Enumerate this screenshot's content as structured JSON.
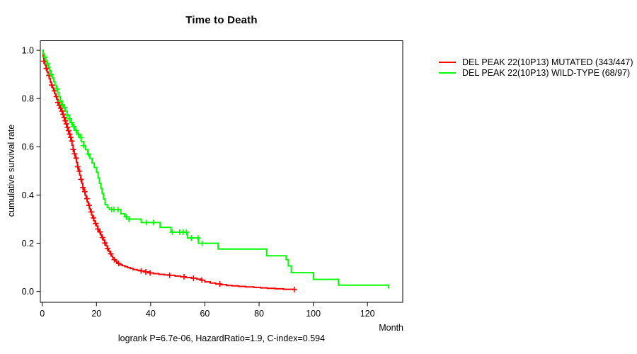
{
  "chart_data": {
    "type": "line",
    "subtype": "kaplan-meier-step-curves",
    "title": "Time to Death",
    "xlabel": "Month",
    "ylabel": "cumulative survival rate",
    "footer": "logrank P=6.7e-06, HazardRatio=1.9, C-index=0.594",
    "x_ticks": [
      0,
      20,
      40,
      60,
      80,
      100,
      120
    ],
    "y_ticks": [
      0.0,
      0.2,
      0.4,
      0.6,
      0.8,
      1.0
    ],
    "xlim": [
      -0.7,
      133
    ],
    "ylim": [
      -0.045,
      1.04
    ],
    "grid": false,
    "legend_position": "right-outside",
    "frame_color": "#000000",
    "series": [
      {
        "name": "DEL PEAK 22(10P13) MUTATED (343/447)",
        "color": "#ff0000",
        "points": [
          [
            0,
            1.0
          ],
          [
            0.3,
            0.975
          ],
          [
            0.6,
            0.955
          ],
          [
            1.0,
            0.94
          ],
          [
            1.4,
            0.925
          ],
          [
            1.8,
            0.91
          ],
          [
            2.2,
            0.896
          ],
          [
            2.6,
            0.882
          ],
          [
            3.0,
            0.868
          ],
          [
            3.4,
            0.856
          ],
          [
            3.8,
            0.844
          ],
          [
            4.2,
            0.832
          ],
          [
            4.6,
            0.82
          ],
          [
            5.0,
            0.808
          ],
          [
            5.4,
            0.796
          ],
          [
            5.8,
            0.784
          ],
          [
            6.2,
            0.772
          ],
          [
            6.6,
            0.76
          ],
          [
            7.0,
            0.748
          ],
          [
            7.4,
            0.735
          ],
          [
            7.8,
            0.722
          ],
          [
            8.2,
            0.708
          ],
          [
            8.6,
            0.695
          ],
          [
            9.0,
            0.681
          ],
          [
            9.4,
            0.667
          ],
          [
            9.8,
            0.653
          ],
          [
            10.2,
            0.639
          ],
          [
            10.6,
            0.624
          ],
          [
            11.0,
            0.607
          ],
          [
            11.4,
            0.589
          ],
          [
            11.8,
            0.571
          ],
          [
            12.2,
            0.553
          ],
          [
            12.6,
            0.535
          ],
          [
            13.0,
            0.517
          ],
          [
            13.4,
            0.499
          ],
          [
            13.8,
            0.482
          ],
          [
            14.2,
            0.465
          ],
          [
            14.6,
            0.448
          ],
          [
            15.0,
            0.431
          ],
          [
            15.4,
            0.414
          ],
          [
            15.8,
            0.399
          ],
          [
            16.2,
            0.385
          ],
          [
            16.6,
            0.371
          ],
          [
            17.0,
            0.357
          ],
          [
            17.4,
            0.343
          ],
          [
            17.8,
            0.33
          ],
          [
            18.2,
            0.317
          ],
          [
            18.6,
            0.305
          ],
          [
            19.0,
            0.293
          ],
          [
            19.5,
            0.282
          ],
          [
            20.0,
            0.271
          ],
          [
            20.5,
            0.259
          ],
          [
            21.0,
            0.247
          ],
          [
            21.5,
            0.235
          ],
          [
            22.0,
            0.224
          ],
          [
            22.5,
            0.213
          ],
          [
            23.0,
            0.201
          ],
          [
            23.5,
            0.189
          ],
          [
            24.0,
            0.178
          ],
          [
            24.5,
            0.167
          ],
          [
            25.0,
            0.156
          ],
          [
            25.5,
            0.147
          ],
          [
            26.0,
            0.139
          ],
          [
            26.5,
            0.132
          ],
          [
            27.0,
            0.126
          ],
          [
            27.5,
            0.121
          ],
          [
            28.0,
            0.116
          ],
          [
            28.7,
            0.111
          ],
          [
            29.5,
            0.107
          ],
          [
            30.5,
            0.103
          ],
          [
            31.5,
            0.099
          ],
          [
            32.5,
            0.095
          ],
          [
            33.5,
            0.091
          ],
          [
            35.0,
            0.088
          ],
          [
            36.5,
            0.085
          ],
          [
            38.0,
            0.081
          ],
          [
            39.5,
            0.077
          ],
          [
            41.0,
            0.074
          ],
          [
            43.0,
            0.071
          ],
          [
            45.0,
            0.069
          ],
          [
            47.0,
            0.067
          ],
          [
            49.0,
            0.064
          ],
          [
            51.0,
            0.061
          ],
          [
            53.0,
            0.058
          ],
          [
            55.0,
            0.055
          ],
          [
            57.0,
            0.051
          ],
          [
            58.5,
            0.047
          ],
          [
            60.0,
            0.04
          ],
          [
            62.0,
            0.035
          ],
          [
            64.0,
            0.031
          ],
          [
            66.0,
            0.028
          ],
          [
            68.0,
            0.025
          ],
          [
            70.0,
            0.023
          ],
          [
            72.5,
            0.021
          ],
          [
            75.0,
            0.019
          ],
          [
            78.0,
            0.017
          ],
          [
            80.5,
            0.015
          ],
          [
            83.0,
            0.013
          ],
          [
            86.0,
            0.011
          ],
          [
            89.0,
            0.009
          ],
          [
            93.0,
            0.008
          ]
        ],
        "censor_months": [
          0.6,
          1.5,
          2.5,
          3.5,
          4.5,
          5.2,
          5.8,
          6.3,
          6.8,
          7.3,
          7.7,
          8.1,
          8.5,
          8.9,
          9.3,
          9.7,
          10.1,
          10.5,
          10.9,
          11.4,
          11.9,
          12.5,
          13.1,
          13.7,
          14.3,
          15.0,
          15.7,
          16.5,
          17.3,
          18.1,
          18.9,
          19.7,
          20.5,
          21.3,
          22.2,
          23.1,
          24.1,
          25.3,
          26.6,
          28.2,
          36.5,
          38.2,
          39.8,
          47.0,
          52.3,
          55.8,
          58.9,
          65.5,
          93.0
        ]
      },
      {
        "name": "DEL PEAK 22(10P13) WILD-TYPE (68/97)",
        "color": "#00ff00",
        "points": [
          [
            0,
            1.0
          ],
          [
            0.4,
            0.985
          ],
          [
            0.8,
            0.972
          ],
          [
            1.2,
            0.958
          ],
          [
            1.7,
            0.944
          ],
          [
            2.2,
            0.93
          ],
          [
            2.7,
            0.915
          ],
          [
            3.2,
            0.9
          ],
          [
            3.7,
            0.885
          ],
          [
            4.2,
            0.87
          ],
          [
            4.7,
            0.855
          ],
          [
            5.2,
            0.84
          ],
          [
            5.7,
            0.824
          ],
          [
            6.2,
            0.808
          ],
          [
            6.7,
            0.79
          ],
          [
            7.2,
            0.775
          ],
          [
            7.8,
            0.762
          ],
          [
            8.5,
            0.748
          ],
          [
            9.2,
            0.732
          ],
          [
            9.9,
            0.716
          ],
          [
            10.6,
            0.7
          ],
          [
            11.3,
            0.684
          ],
          [
            12.0,
            0.668
          ],
          [
            12.8,
            0.652
          ],
          [
            13.6,
            0.638
          ],
          [
            14.4,
            0.622
          ],
          [
            15.2,
            0.605
          ],
          [
            16.0,
            0.588
          ],
          [
            16.8,
            0.57
          ],
          [
            17.6,
            0.552
          ],
          [
            18.4,
            0.533
          ],
          [
            19.2,
            0.514
          ],
          [
            20.0,
            0.494
          ],
          [
            20.6,
            0.47
          ],
          [
            21.1,
            0.448
          ],
          [
            21.6,
            0.427
          ],
          [
            22.1,
            0.406
          ],
          [
            22.6,
            0.384
          ],
          [
            23.2,
            0.36
          ],
          [
            24.0,
            0.348
          ],
          [
            24.8,
            0.34
          ],
          [
            29.0,
            0.322
          ],
          [
            30.4,
            0.31
          ],
          [
            31.2,
            0.3
          ],
          [
            36.5,
            0.286
          ],
          [
            43.5,
            0.266
          ],
          [
            47.5,
            0.246
          ],
          [
            53.6,
            0.222
          ],
          [
            57.6,
            0.2
          ],
          [
            64.9,
            0.176
          ],
          [
            82.8,
            0.148
          ],
          [
            90.0,
            0.132
          ],
          [
            90.8,
            0.106
          ],
          [
            91.9,
            0.078
          ],
          [
            100.1,
            0.05
          ],
          [
            109.3,
            0.026
          ],
          [
            127.8,
            0.012
          ]
        ],
        "censor_months": [
          1.0,
          2.0,
          3.3,
          5.5,
          6.8,
          7.4,
          8.3,
          9.2,
          10.0,
          10.8,
          11.6,
          12.5,
          13.4,
          14.3,
          15.2,
          17.0,
          25.6,
          26.5,
          28.0,
          31.0,
          32.0,
          38.5,
          41.0,
          48.0,
          50.7,
          52.0,
          53.2,
          55.0,
          57.5,
          59.0
        ]
      }
    ]
  }
}
